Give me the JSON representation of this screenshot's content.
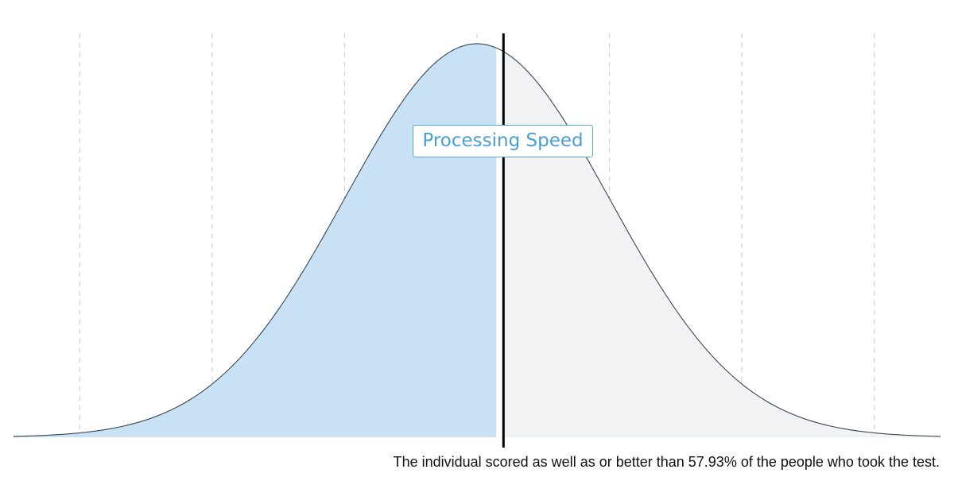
{
  "chart_data": {
    "type": "area",
    "title": "",
    "xlabel": "",
    "ylabel": "",
    "distribution": "normal",
    "xlim": [
      -3.5,
      3.5
    ],
    "ylim": [
      0,
      0.4
    ],
    "x_gridlines": [
      -3,
      -2,
      -1,
      0,
      1,
      2,
      3
    ],
    "grid": "vertical-dashed",
    "score_z": 0.2,
    "percentile": 57.93,
    "series": [
      {
        "name": "Processing Speed",
        "color": "#c8e1f5"
      }
    ],
    "colors": {
      "below_fill": "#c8e1f5",
      "above_fill": "#f1f2f4",
      "curve": "#3a4452",
      "marker": "#000000",
      "label": "#4a9ed6"
    }
  },
  "label": {
    "text": "Processing Speed"
  },
  "caption": {
    "text": "The individual scored as well as or better than 57.93% of the people who took the test."
  }
}
